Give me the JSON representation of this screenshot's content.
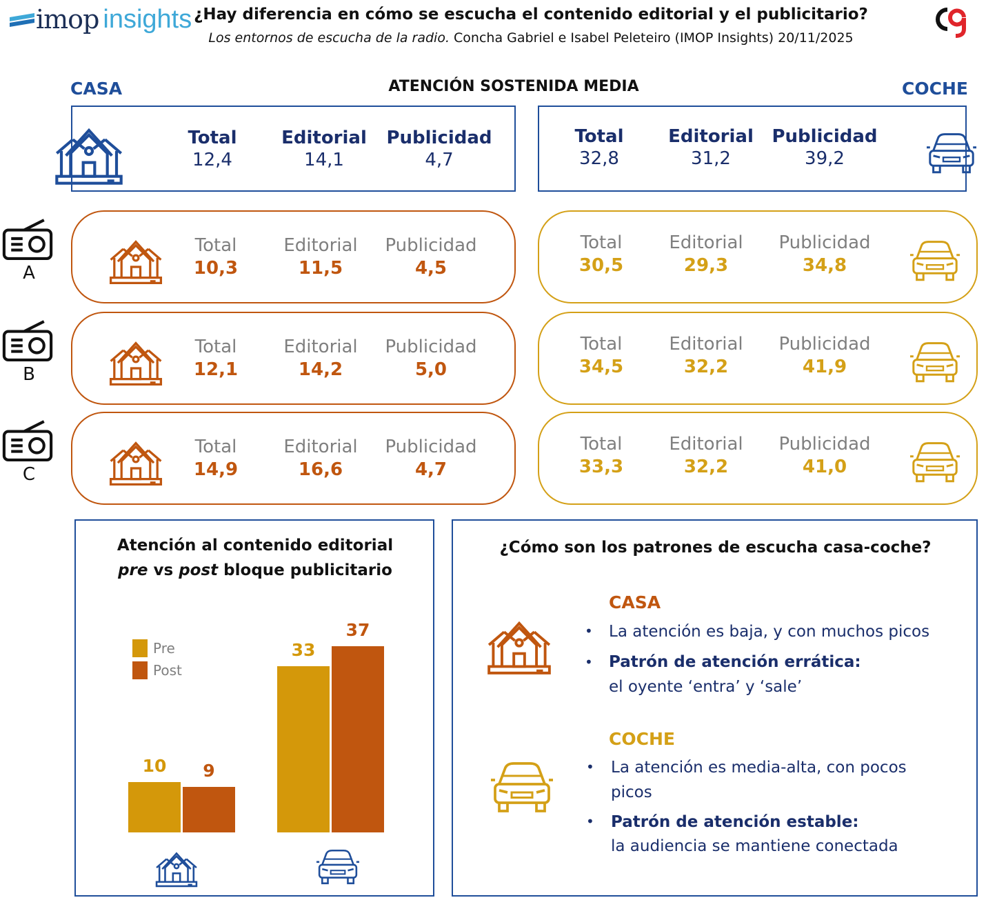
{
  "header": {
    "logo_main": "imop",
    "logo_accent": "insights",
    "title": "¿Hay diferencia en cómo se escucha el contenido editorial y el publicitario?",
    "subtitle_italic": "Los entornos de escucha de la radio.",
    "subtitle_rest": " Concha Gabriel e Isabel Peleteiro (IMOP Insights) 20/11/2025",
    "section_title": "ATENCIÓN SOSTENIDA MEDIA",
    "casa_label": "CASA",
    "coche_label": "COCHE"
  },
  "labels": {
    "total": "Total",
    "editorial": "Editorial",
    "publicidad": "Publicidad"
  },
  "summary": {
    "casa": {
      "total": "12,4",
      "editorial": "14,1",
      "publicidad": "4,7"
    },
    "coche": {
      "total": "32,8",
      "editorial": "31,2",
      "publicidad": "39,2"
    }
  },
  "stations": [
    {
      "letter": "A",
      "casa": {
        "total": "10,3",
        "editorial": "11,5",
        "publicidad": "4,5"
      },
      "coche": {
        "total": "30,5",
        "editorial": "29,3",
        "publicidad": "34,8"
      }
    },
    {
      "letter": "B",
      "casa": {
        "total": "12,1",
        "editorial": "14,2",
        "publicidad": "5,0"
      },
      "coche": {
        "total": "34,5",
        "editorial": "32,2",
        "publicidad": "41,9"
      }
    },
    {
      "letter": "C",
      "casa": {
        "total": "14,9",
        "editorial": "16,6",
        "publicidad": "4,7"
      },
      "coche": {
        "total": "33,3",
        "editorial": "32,2",
        "publicidad": "41,0"
      }
    }
  ],
  "chart_data": {
    "type": "bar",
    "title_line1": "Atención al contenido editorial",
    "title_pre": "pre",
    "title_vs": " vs ",
    "title_post": "post",
    "title_rest": " bloque publicitario",
    "categories": [
      "Casa",
      "Coche"
    ],
    "series": [
      {
        "name": "Pre",
        "values": [
          10,
          33
        ],
        "color": "#d4980a"
      },
      {
        "name": "Post",
        "values": [
          9,
          37
        ],
        "color": "#c0560f"
      }
    ],
    "ylim": [
      0,
      37
    ],
    "legend_position": "top-left"
  },
  "patterns": {
    "title": "¿Cómo son los patrones de escucha casa-coche?",
    "casa": {
      "heading": "CASA",
      "bullet1": "La atención es baja, y con muchos picos",
      "bullet2_bold": "Patrón de atención errática:",
      "bullet2_rest": "el oyente ‘entra’ y ‘sale’"
    },
    "coche": {
      "heading": "COCHE",
      "bullet1_a": "La atención es media-alta, con pocos",
      "bullet1_b": "picos",
      "bullet2_bold": "Patrón de atención estable:",
      "bullet2_rest": "la audiencia se mantiene conectada"
    }
  },
  "colors": {
    "blue": "#1f4e9a",
    "orange": "#c0560f",
    "gold": "#d4a017"
  }
}
